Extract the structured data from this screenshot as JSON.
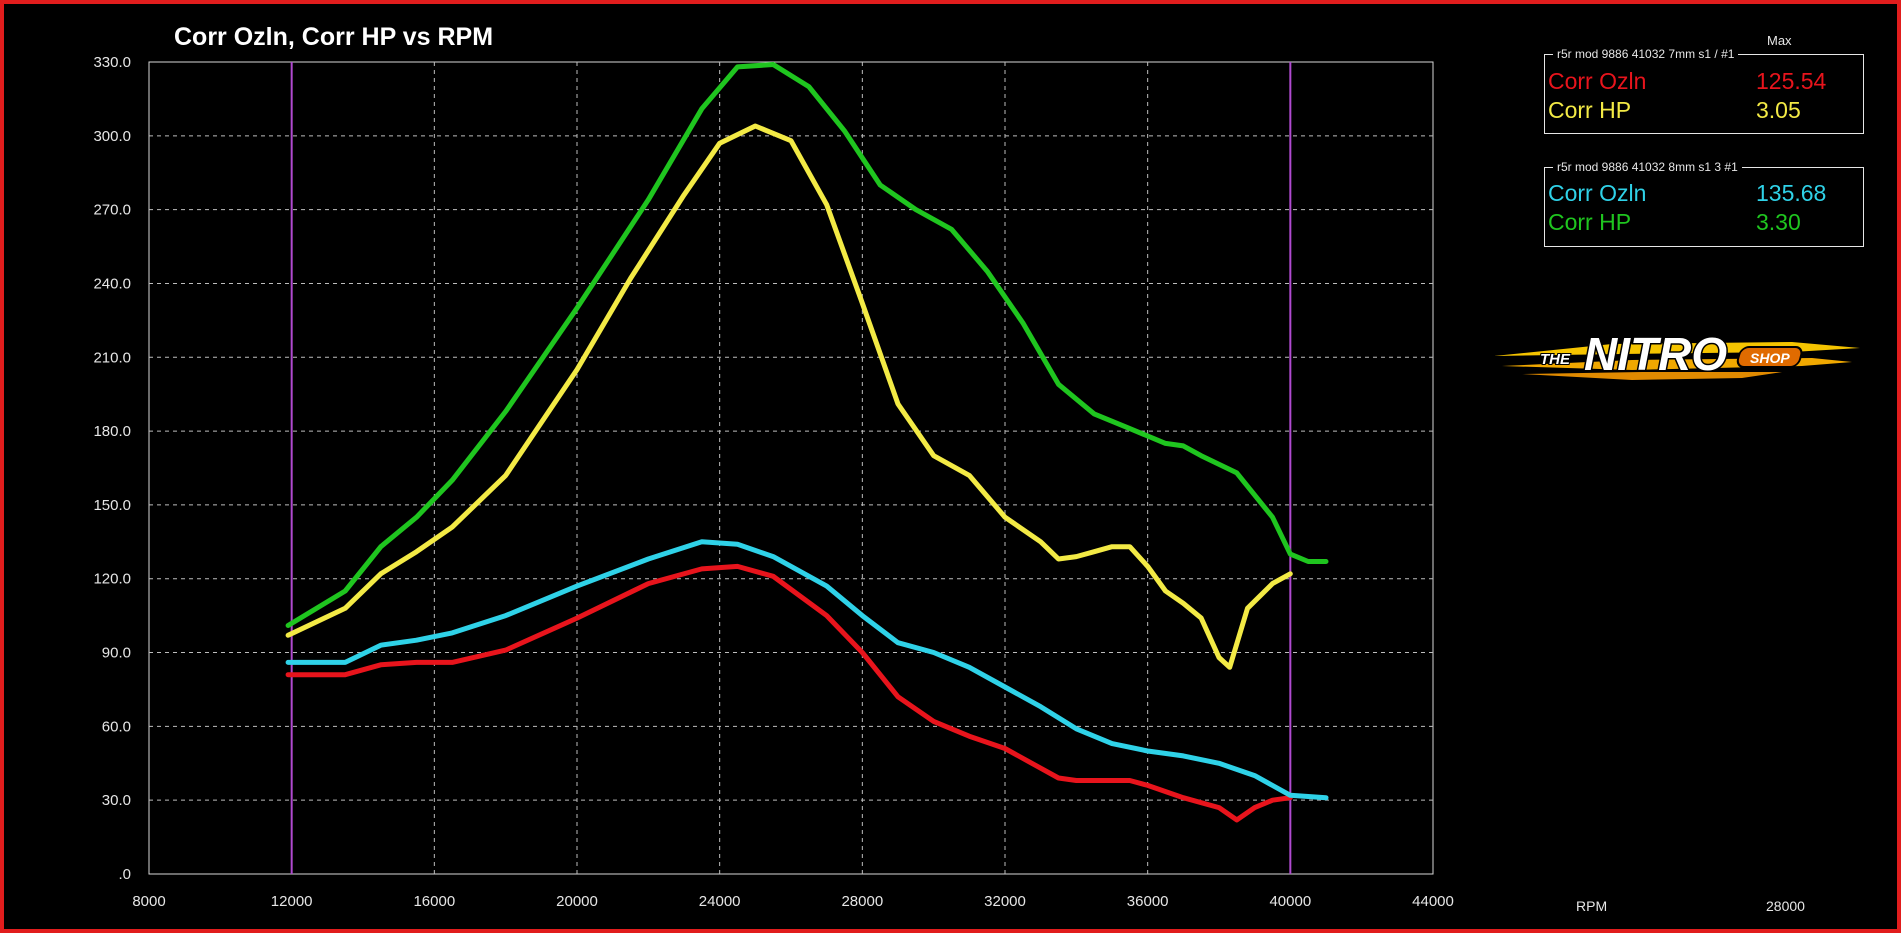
{
  "chart_data": {
    "type": "line",
    "title": "Corr Ozln, Corr HP vs RPM",
    "xlabel": "RPM",
    "ylabel": "",
    "xlim": [
      8000,
      44000
    ],
    "ylim": [
      0,
      330
    ],
    "x_ticks": [
      "8000",
      "12000",
      "16000",
      "20000",
      "24000",
      "28000",
      "32000",
      "36000",
      "40000",
      "44000"
    ],
    "y_ticks": [
      ".0",
      "30.0",
      "60.0",
      "90.0",
      "120.0",
      "150.0",
      "180.0",
      "210.0",
      "240.0",
      "270.0",
      "300.0",
      "330.0"
    ],
    "markers": [
      12000,
      40000
    ],
    "grid": true,
    "series": [
      {
        "name": "Corr Ozln",
        "run": 1,
        "color": "#e8141c",
        "points": [
          [
            11900,
            81
          ],
          [
            13500,
            81
          ],
          [
            14500,
            85
          ],
          [
            15500,
            86
          ],
          [
            16500,
            86
          ],
          [
            18000,
            91
          ],
          [
            20000,
            104
          ],
          [
            22000,
            118
          ],
          [
            23500,
            124
          ],
          [
            24500,
            125
          ],
          [
            25500,
            121
          ],
          [
            27000,
            105
          ],
          [
            28000,
            90
          ],
          [
            29000,
            72
          ],
          [
            30000,
            62
          ],
          [
            31000,
            56
          ],
          [
            32000,
            51
          ],
          [
            33000,
            43
          ],
          [
            33500,
            39
          ],
          [
            34000,
            38
          ],
          [
            35000,
            38
          ],
          [
            35500,
            38
          ],
          [
            36000,
            36
          ],
          [
            37000,
            31
          ],
          [
            38000,
            27
          ],
          [
            38500,
            22
          ],
          [
            39000,
            27
          ],
          [
            39500,
            30
          ],
          [
            40000,
            31
          ]
        ]
      },
      {
        "name": "Corr HP",
        "run": 1,
        "color": "#f3ea45",
        "points": [
          [
            11900,
            97
          ],
          [
            13500,
            108
          ],
          [
            14500,
            122
          ],
          [
            15500,
            131
          ],
          [
            16500,
            141
          ],
          [
            18000,
            162
          ],
          [
            20000,
            205
          ],
          [
            21500,
            242
          ],
          [
            23000,
            276
          ],
          [
            24000,
            297
          ],
          [
            25000,
            304
          ],
          [
            26000,
            298
          ],
          [
            27000,
            272
          ],
          [
            28000,
            232
          ],
          [
            29000,
            191
          ],
          [
            30000,
            170
          ],
          [
            31000,
            162
          ],
          [
            32000,
            145
          ],
          [
            33000,
            135
          ],
          [
            33500,
            128
          ],
          [
            34000,
            129
          ],
          [
            34500,
            131
          ],
          [
            35000,
            133
          ],
          [
            35500,
            133
          ],
          [
            36000,
            125
          ],
          [
            36500,
            115
          ],
          [
            37000,
            110
          ],
          [
            37500,
            104
          ],
          [
            38000,
            88
          ],
          [
            38300,
            84
          ],
          [
            38800,
            108
          ],
          [
            39500,
            118
          ],
          [
            40000,
            122
          ]
        ]
      },
      {
        "name": "Corr Ozln",
        "run": 2,
        "color": "#2fd2e8",
        "points": [
          [
            11900,
            86
          ],
          [
            13500,
            86
          ],
          [
            14500,
            93
          ],
          [
            15500,
            95
          ],
          [
            16500,
            98
          ],
          [
            18000,
            105
          ],
          [
            20000,
            117
          ],
          [
            22000,
            128
          ],
          [
            23500,
            135
          ],
          [
            24500,
            134
          ],
          [
            25500,
            129
          ],
          [
            27000,
            117
          ],
          [
            28000,
            105
          ],
          [
            29000,
            94
          ],
          [
            30000,
            90
          ],
          [
            31000,
            84
          ],
          [
            32000,
            76
          ],
          [
            33000,
            68
          ],
          [
            34000,
            59
          ],
          [
            35000,
            53
          ],
          [
            36000,
            50
          ],
          [
            37000,
            48
          ],
          [
            38000,
            45
          ],
          [
            39000,
            40
          ],
          [
            40000,
            32
          ],
          [
            41000,
            31
          ]
        ]
      },
      {
        "name": "Corr HP",
        "run": 2,
        "color": "#1fc51f",
        "points": [
          [
            11900,
            101
          ],
          [
            13500,
            115
          ],
          [
            14500,
            133
          ],
          [
            15500,
            145
          ],
          [
            16500,
            160
          ],
          [
            18000,
            188
          ],
          [
            20000,
            230
          ],
          [
            22000,
            274
          ],
          [
            23500,
            311
          ],
          [
            24500,
            328
          ],
          [
            25500,
            329
          ],
          [
            26500,
            320
          ],
          [
            27500,
            302
          ],
          [
            28500,
            280
          ],
          [
            29500,
            270
          ],
          [
            30500,
            262
          ],
          [
            31500,
            245
          ],
          [
            32500,
            224
          ],
          [
            33500,
            199
          ],
          [
            34500,
            187
          ],
          [
            35500,
            181
          ],
          [
            36500,
            175
          ],
          [
            37000,
            174
          ],
          [
            37500,
            170
          ],
          [
            38500,
            163
          ],
          [
            39500,
            145
          ],
          [
            40000,
            130
          ],
          [
            40500,
            127
          ],
          [
            41000,
            127
          ]
        ]
      }
    ],
    "legend": {
      "placement": "top-right",
      "max_header": "Max",
      "groups": [
        {
          "run_label": "r5r mod 9886 41032 7mm s1 /   #1",
          "rows": [
            {
              "label": "Corr Ozln",
              "value": "125.54",
              "color": "#e8141c"
            },
            {
              "label": "Corr HP",
              "value": "3.05",
              "color": "#f3ea45"
            }
          ]
        },
        {
          "run_label": "r5r mod 9886 41032 8mm s1 3   #1",
          "rows": [
            {
              "label": "Corr Ozln",
              "value": "135.68",
              "color": "#2fd2e8"
            },
            {
              "label": "Corr HP",
              "value": "3.30",
              "color": "#1fc51f"
            }
          ]
        }
      ]
    },
    "cursor_readout": {
      "label": "RPM",
      "value": "28000"
    }
  },
  "logo": {
    "text_the": "THE",
    "text_main": "NITRO",
    "text_shop": "SHOP"
  }
}
